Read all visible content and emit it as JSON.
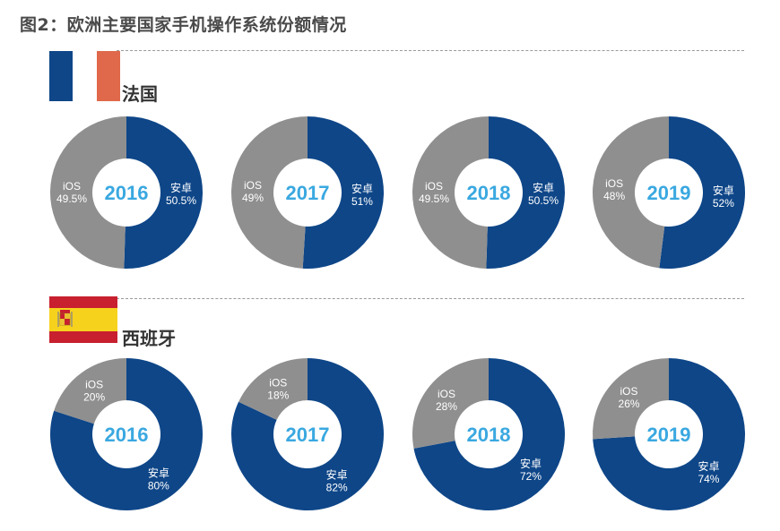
{
  "title": "图2：欧洲主要国家手机操作系统份额情况",
  "colors": {
    "android": "#0e4688",
    "ios": "#8f8f8f",
    "year": "#3aa8e0"
  },
  "sections": [
    {
      "country": "法国",
      "flag": "france-flag"
    },
    {
      "country": "西班牙",
      "flag": "spain-flag"
    }
  ],
  "chart_data": [
    {
      "type": "pie",
      "country": "法国",
      "title": "2016",
      "series": [
        {
          "name": "iOS",
          "value": 49.5,
          "label": "49.5%"
        },
        {
          "name": "安卓",
          "value": 50.5,
          "label": "50.5%"
        }
      ]
    },
    {
      "type": "pie",
      "country": "法国",
      "title": "2017",
      "series": [
        {
          "name": "iOS",
          "value": 49,
          "label": "49%"
        },
        {
          "name": "安卓",
          "value": 51,
          "label": "51%"
        }
      ]
    },
    {
      "type": "pie",
      "country": "法国",
      "title": "2018",
      "series": [
        {
          "name": "iOS",
          "value": 49.5,
          "label": "49.5%"
        },
        {
          "name": "安卓",
          "value": 50.5,
          "label": "50.5%"
        }
      ]
    },
    {
      "type": "pie",
      "country": "法国",
      "title": "2019",
      "series": [
        {
          "name": "iOS",
          "value": 48,
          "label": "48%"
        },
        {
          "name": "安卓",
          "value": 52,
          "label": "52%"
        }
      ]
    },
    {
      "type": "pie",
      "country": "西班牙",
      "title": "2016",
      "series": [
        {
          "name": "iOS",
          "value": 20,
          "label": "20%"
        },
        {
          "name": "安卓",
          "value": 80,
          "label": "80%"
        }
      ]
    },
    {
      "type": "pie",
      "country": "西班牙",
      "title": "2017",
      "series": [
        {
          "name": "iOS",
          "value": 18,
          "label": "18%"
        },
        {
          "name": "安卓",
          "value": 82,
          "label": "82%"
        }
      ]
    },
    {
      "type": "pie",
      "country": "西班牙",
      "title": "2018",
      "series": [
        {
          "name": "iOS",
          "value": 28,
          "label": "28%"
        },
        {
          "name": "安卓",
          "value": 72,
          "label": "72%"
        }
      ]
    },
    {
      "type": "pie",
      "country": "西班牙",
      "title": "2019",
      "series": [
        {
          "name": "iOS",
          "value": 26,
          "label": "26%"
        },
        {
          "name": "安卓",
          "value": 74,
          "label": "74%"
        }
      ]
    }
  ]
}
